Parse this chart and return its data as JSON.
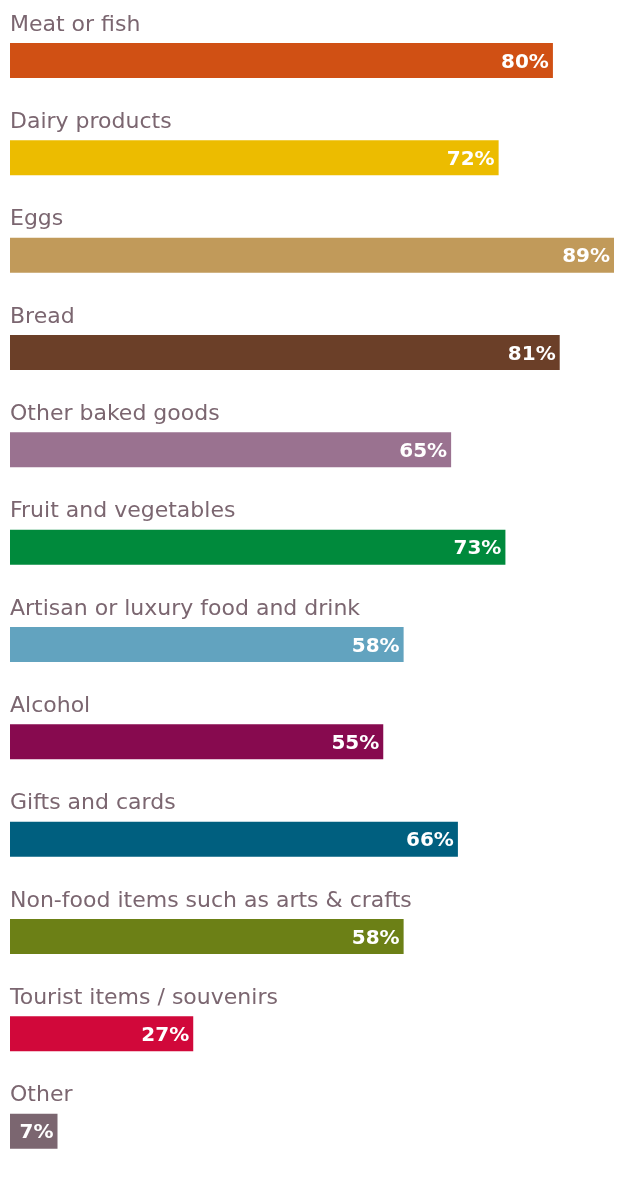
{
  "chart_data": {
    "type": "bar",
    "orientation": "horizontal",
    "categories": [
      "Meat or fish",
      "Dairy products",
      "Eggs",
      "Bread",
      "Other baked goods",
      "Fruit and vegetables",
      "Artisan or luxury food and drink",
      "Alcohol",
      "Gifts and cards",
      "Non-food items such as arts & crafts",
      "Tourist items / souvenirs",
      "Other"
    ],
    "values": [
      80,
      72,
      89,
      81,
      65,
      73,
      58,
      55,
      66,
      58,
      27,
      7
    ],
    "value_labels": [
      "80%",
      "72%",
      "89%",
      "81%",
      "65%",
      "73%",
      "58%",
      "55%",
      "66%",
      "58%",
      "27%",
      "7%"
    ],
    "colors": [
      "#d05014",
      "#ecbc00",
      "#c19a5a",
      "#6b3f28",
      "#9a7290",
      "#008a3c",
      "#62a3bf",
      "#870a4f",
      "#005f7f",
      "#6c8016",
      "#d1083a",
      "#7b6670"
    ],
    "grid": false,
    "legend": false
  }
}
